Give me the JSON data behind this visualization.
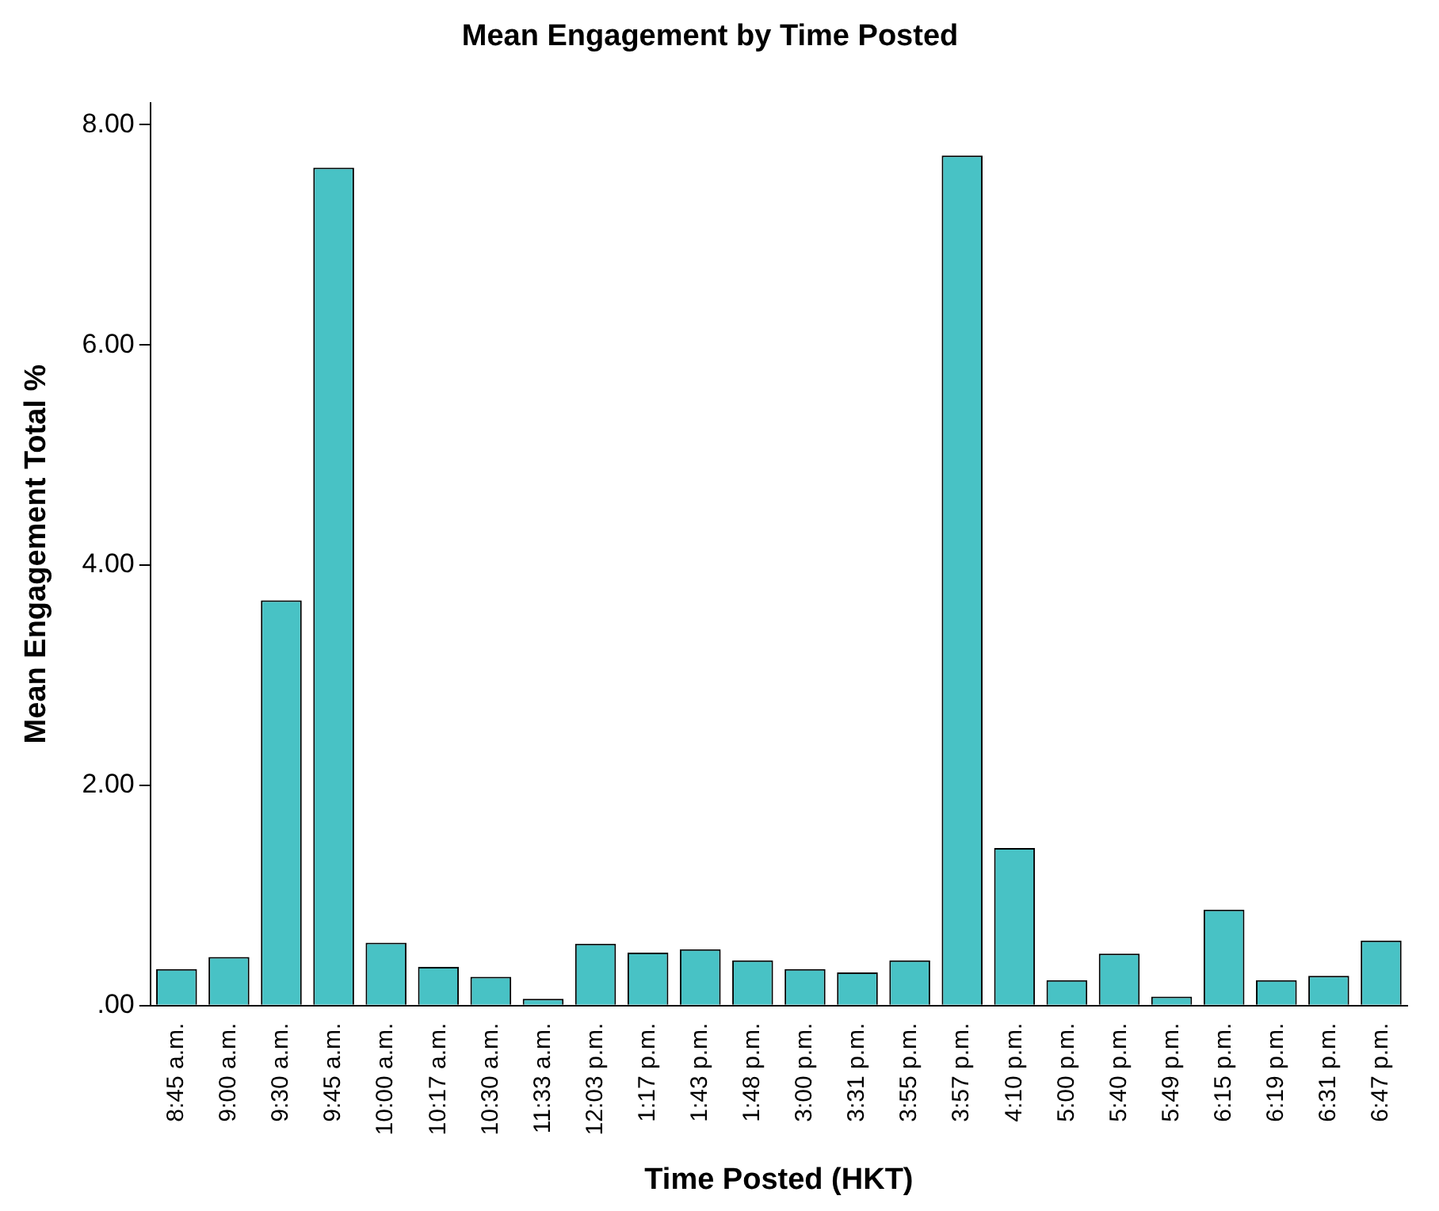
{
  "chart_data": {
    "type": "bar",
    "title": "Mean Engagement by Time Posted",
    "xlabel": "Time Posted (HKT)",
    "ylabel": "Mean Engagement Total %",
    "categories": [
      "8:45 a.m.",
      "9:00 a.m.",
      "9:30 a.m.",
      "9:45 a.m.",
      "10:00 a.m.",
      "10:17 a.m.",
      "10:30 a.m.",
      "11:33 a.m.",
      "12:03 p.m.",
      "1:17 p.m.",
      "1:43 p.m.",
      "1:48 p.m.",
      "3:00 p.m.",
      "3:31 p.m.",
      "3:55 p.m.",
      "3:57 p.m.",
      "4:10 p.m.",
      "5:00 p.m.",
      "5:40 p.m.",
      "5:49 p.m.",
      "6:15 p.m.",
      "6:19 p.m.",
      "6:31 p.m.",
      "6:47 p.m."
    ],
    "values": [
      0.33,
      0.44,
      3.68,
      7.61,
      0.57,
      0.35,
      0.26,
      0.06,
      0.56,
      0.48,
      0.51,
      0.41,
      0.33,
      0.3,
      0.41,
      7.72,
      1.43,
      0.23,
      0.47,
      0.08,
      0.87,
      0.23,
      0.27,
      0.59
    ],
    "color": "#48c2c5",
    "ylim": [
      0,
      8.2
    ],
    "yticks": [
      {
        "value": 0,
        "label": ".00"
      },
      {
        "value": 2,
        "label": "2.00"
      },
      {
        "value": 4,
        "label": "4.00"
      },
      {
        "value": 6,
        "label": "6.00"
      },
      {
        "value": 8,
        "label": "8.00"
      }
    ],
    "grid": false,
    "legend": false
  }
}
